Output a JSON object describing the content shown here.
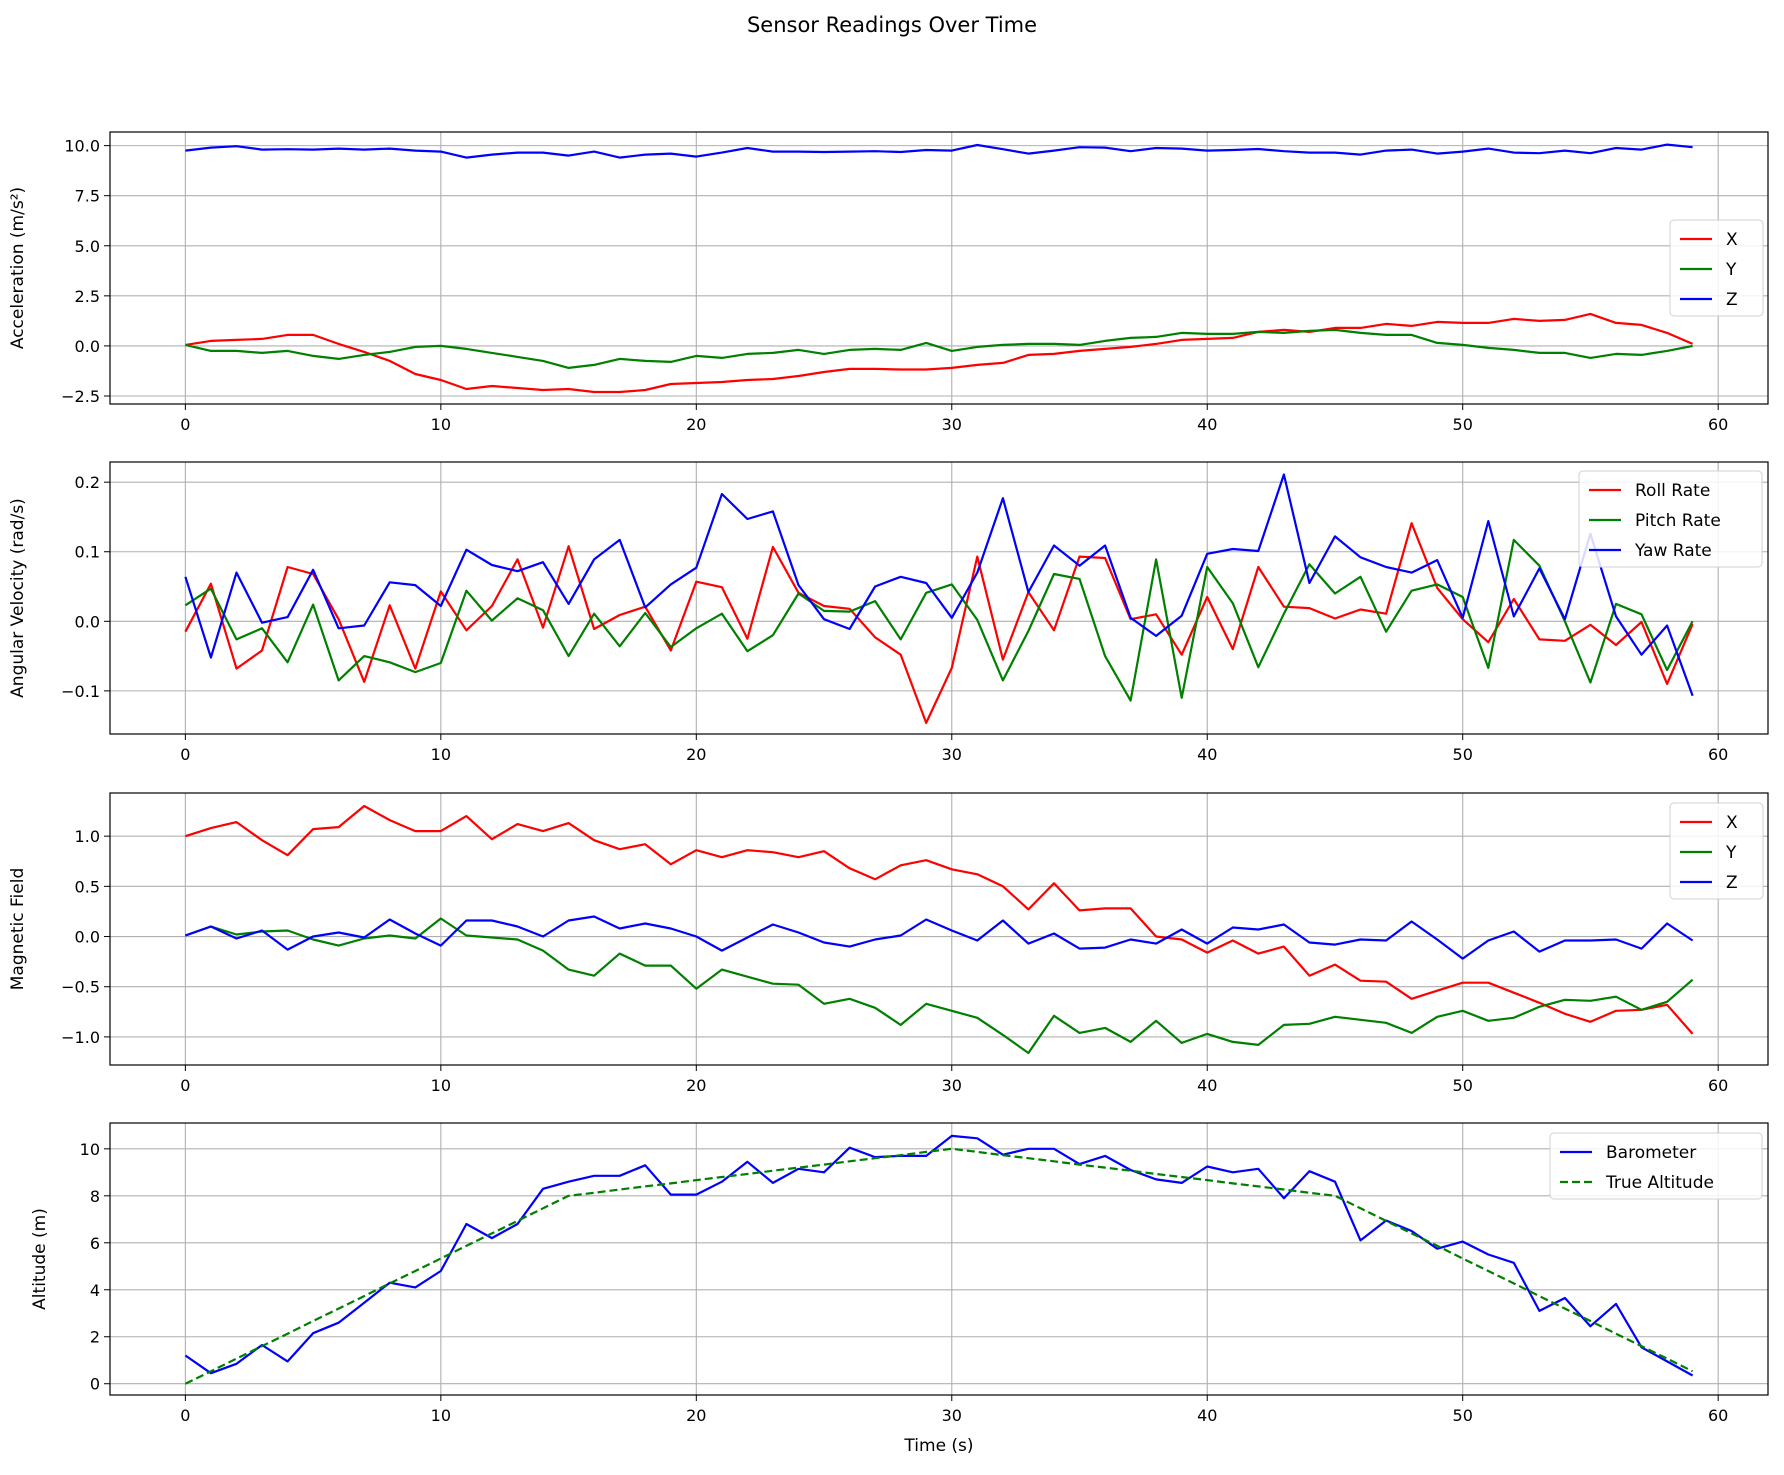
{
  "title": "Sensor Readings Over Time",
  "colors": {
    "red": "#ff0000",
    "green": "#008000",
    "blue": "#0000ff",
    "grid": "#b0b0b0"
  },
  "chart_data": [
    {
      "type": "line",
      "ylabel": "Acceleration (m/s²)",
      "xlabel": "",
      "xlim": [
        -2.95,
        61.95
      ],
      "ylim": [
        -2.9,
        10.68
      ],
      "xticks": [
        "0",
        "10",
        "20",
        "30",
        "40",
        "50",
        "60"
      ],
      "yticks": [
        "−2.5",
        "0.0",
        "2.5",
        "5.0",
        "7.5",
        "10.0"
      ],
      "ytick_values": [
        -2.5,
        0,
        2.5,
        5,
        7.5,
        10
      ],
      "grid": true,
      "legend": "center-right",
      "series": [
        {
          "name": "X",
          "color": "#ff0000",
          "values": [
            0.05,
            0.25,
            0.3,
            0.35,
            0.55,
            0.55,
            0.1,
            -0.3,
            -0.75,
            -1.4,
            -1.7,
            -2.15,
            -2.0,
            -2.1,
            -2.2,
            -2.15,
            -2.3,
            -2.3,
            -2.2,
            -1.9,
            -1.85,
            -1.8,
            -1.7,
            -1.65,
            -1.5,
            -1.3,
            -1.15,
            -1.15,
            -1.18,
            -1.18,
            -1.1,
            -0.95,
            -0.85,
            -0.45,
            -0.4,
            -0.25,
            -0.15,
            -0.05,
            0.1,
            0.3,
            0.35,
            0.4,
            0.7,
            0.8,
            0.7,
            0.9,
            0.9,
            1.1,
            1.0,
            1.2,
            1.15,
            1.15,
            1.35,
            1.25,
            1.3,
            1.6,
            1.15,
            1.05,
            0.65,
            0.1
          ]
        },
        {
          "name": "Y",
          "color": "#008000",
          "values": [
            0.05,
            -0.25,
            -0.25,
            -0.35,
            -0.25,
            -0.5,
            -0.65,
            -0.45,
            -0.3,
            -0.05,
            0.0,
            -0.15,
            -0.35,
            -0.55,
            -0.75,
            -1.1,
            -0.95,
            -0.65,
            -0.75,
            -0.8,
            -0.5,
            -0.6,
            -0.4,
            -0.35,
            -0.2,
            -0.4,
            -0.2,
            -0.15,
            -0.2,
            0.15,
            -0.25,
            -0.05,
            0.05,
            0.1,
            0.1,
            0.05,
            0.25,
            0.4,
            0.45,
            0.65,
            0.6,
            0.6,
            0.7,
            0.65,
            0.75,
            0.8,
            0.65,
            0.55,
            0.55,
            0.15,
            0.05,
            -0.1,
            -0.2,
            -0.35,
            -0.35,
            -0.6,
            -0.4,
            -0.45,
            -0.25,
            0.0
          ]
        },
        {
          "name": "Z",
          "color": "#0000ff",
          "values": [
            9.75,
            9.9,
            9.97,
            9.8,
            9.82,
            9.8,
            9.85,
            9.8,
            9.85,
            9.75,
            9.7,
            9.4,
            9.55,
            9.65,
            9.65,
            9.5,
            9.7,
            9.4,
            9.55,
            9.6,
            9.45,
            9.65,
            9.88,
            9.7,
            9.7,
            9.68,
            9.7,
            9.72,
            9.68,
            9.78,
            9.75,
            10.03,
            9.82,
            9.6,
            9.75,
            9.92,
            9.9,
            9.72,
            9.88,
            9.85,
            9.75,
            9.78,
            9.83,
            9.72,
            9.65,
            9.65,
            9.55,
            9.75,
            9.8,
            9.6,
            9.7,
            9.85,
            9.65,
            9.62,
            9.75,
            9.62,
            9.88,
            9.8,
            10.05,
            9.92
          ]
        }
      ]
    },
    {
      "type": "line",
      "ylabel": "Angular Velocity (rad/s)",
      "xlabel": "",
      "xlim": [
        -2.95,
        61.95
      ],
      "ylim": [
        -0.162,
        0.229
      ],
      "xticks": [
        "0",
        "10",
        "20",
        "30",
        "40",
        "50",
        "60"
      ],
      "yticks": [
        "−0.1",
        "0.0",
        "0.1",
        "0.2"
      ],
      "ytick_values": [
        -0.1,
        0,
        0.1,
        0.2
      ],
      "grid": true,
      "legend": "upper-right",
      "series": [
        {
          "name": "Roll Rate",
          "color": "#ff0000",
          "values": [
            -0.015,
            0.054,
            -0.068,
            -0.042,
            0.078,
            0.068,
            0.003,
            -0.087,
            0.023,
            -0.068,
            0.043,
            -0.013,
            0.022,
            0.089,
            -0.009,
            0.108,
            -0.011,
            0.009,
            0.021,
            -0.042,
            0.057,
            0.049,
            -0.025,
            0.107,
            0.041,
            0.022,
            0.018,
            -0.023,
            -0.048,
            -0.146,
            -0.067,
            0.093,
            -0.055,
            0.042,
            -0.013,
            0.093,
            0.091,
            0.003,
            0.01,
            -0.048,
            0.035,
            -0.04,
            0.078,
            0.021,
            0.019,
            0.004,
            0.017,
            0.011,
            0.141,
            0.048,
            0.003,
            -0.03,
            0.032,
            -0.026,
            -0.028,
            -0.005,
            -0.034,
            -0.001,
            -0.09,
            -0.004
          ]
        },
        {
          "name": "Pitch Rate",
          "color": "#008000",
          "values": [
            0.023,
            0.047,
            -0.026,
            -0.01,
            -0.059,
            0.024,
            -0.085,
            -0.05,
            -0.059,
            -0.073,
            -0.06,
            0.044,
            0.001,
            0.033,
            0.016,
            -0.05,
            0.011,
            -0.036,
            0.012,
            -0.037,
            -0.01,
            0.011,
            -0.043,
            -0.02,
            0.04,
            0.015,
            0.014,
            0.029,
            -0.026,
            0.041,
            0.053,
            0.002,
            -0.085,
            -0.014,
            0.068,
            0.061,
            -0.05,
            -0.114,
            0.089,
            -0.11,
            0.078,
            0.026,
            -0.066,
            0.011,
            0.082,
            0.04,
            0.064,
            -0.015,
            0.044,
            0.053,
            0.035,
            -0.067,
            0.117,
            0.08,
            0.0,
            -0.088,
            0.025,
            0.01,
            -0.07,
            0.0
          ]
        },
        {
          "name": "Yaw Rate",
          "color": "#0000ff",
          "values": [
            0.064,
            -0.052,
            0.07,
            -0.002,
            0.006,
            0.074,
            -0.01,
            -0.006,
            0.056,
            0.052,
            0.022,
            0.103,
            0.081,
            0.072,
            0.085,
            0.025,
            0.089,
            0.117,
            0.02,
            0.053,
            0.077,
            0.183,
            0.147,
            0.158,
            0.052,
            0.003,
            -0.011,
            0.05,
            0.064,
            0.055,
            0.005,
            0.07,
            0.177,
            0.042,
            0.109,
            0.08,
            0.109,
            0.005,
            -0.021,
            0.008,
            0.097,
            0.104,
            0.101,
            0.211,
            0.055,
            0.122,
            0.092,
            0.078,
            0.07,
            0.088,
            0.005,
            0.144,
            0.007,
            0.076,
            0.003,
            0.126,
            0.007,
            -0.048,
            -0.006,
            -0.107
          ]
        }
      ]
    },
    {
      "type": "line",
      "ylabel": "Magnetic Field",
      "xlabel": "",
      "xlim": [
        -2.95,
        61.95
      ],
      "ylim": [
        -1.28,
        1.43
      ],
      "xticks": [
        "0",
        "10",
        "20",
        "30",
        "40",
        "50",
        "60"
      ],
      "yticks": [
        "−1.0",
        "−0.5",
        "0.0",
        "0.5",
        "1.0"
      ],
      "ytick_values": [
        -1,
        -0.5,
        0,
        0.5,
        1
      ],
      "grid": true,
      "legend": "upper-right",
      "series": [
        {
          "name": "X",
          "color": "#ff0000",
          "values": [
            1.0,
            1.08,
            1.14,
            0.96,
            0.81,
            1.07,
            1.09,
            1.3,
            1.16,
            1.05,
            1.05,
            1.2,
            0.97,
            1.12,
            1.05,
            1.13,
            0.96,
            0.87,
            0.92,
            0.72,
            0.86,
            0.79,
            0.86,
            0.84,
            0.79,
            0.85,
            0.68,
            0.57,
            0.71,
            0.76,
            0.67,
            0.62,
            0.5,
            0.27,
            0.53,
            0.26,
            0.28,
            0.28,
            0.0,
            -0.03,
            -0.16,
            -0.04,
            -0.17,
            -0.1,
            -0.39,
            -0.28,
            -0.44,
            -0.45,
            -0.62,
            -0.54,
            -0.46,
            -0.46,
            -0.56,
            -0.66,
            -0.77,
            -0.85,
            -0.74,
            -0.73,
            -0.68,
            -0.97
          ]
        },
        {
          "name": "Y",
          "color": "#008000",
          "values": [
            0.01,
            0.1,
            0.02,
            0.05,
            0.06,
            -0.03,
            -0.09,
            -0.02,
            0.01,
            -0.02,
            0.18,
            0.01,
            -0.01,
            -0.03,
            -0.14,
            -0.33,
            -0.39,
            -0.17,
            -0.29,
            -0.29,
            -0.52,
            -0.33,
            -0.4,
            -0.47,
            -0.48,
            -0.67,
            -0.62,
            -0.71,
            -0.88,
            -0.67,
            -0.74,
            -0.81,
            -0.98,
            -1.16,
            -0.79,
            -0.96,
            -0.91,
            -1.05,
            -0.84,
            -1.06,
            -0.97,
            -1.05,
            -1.08,
            -0.88,
            -0.87,
            -0.8,
            -0.83,
            -0.86,
            -0.96,
            -0.8,
            -0.74,
            -0.84,
            -0.81,
            -0.7,
            -0.63,
            -0.64,
            -0.6,
            -0.73,
            -0.65,
            -0.43
          ]
        },
        {
          "name": "Z",
          "color": "#0000ff",
          "values": [
            0.01,
            0.1,
            -0.02,
            0.06,
            -0.13,
            0.0,
            0.04,
            -0.01,
            0.17,
            0.03,
            -0.09,
            0.16,
            0.16,
            0.1,
            0.0,
            0.16,
            0.2,
            0.08,
            0.13,
            0.08,
            0.0,
            -0.14,
            -0.01,
            0.12,
            0.04,
            -0.06,
            -0.1,
            -0.03,
            0.01,
            0.17,
            0.06,
            -0.04,
            0.16,
            -0.07,
            0.03,
            -0.12,
            -0.11,
            -0.03,
            -0.07,
            0.07,
            -0.07,
            0.09,
            0.07,
            0.12,
            -0.06,
            -0.08,
            -0.03,
            -0.04,
            0.15,
            -0.03,
            -0.22,
            -0.04,
            0.05,
            -0.15,
            -0.04,
            -0.04,
            -0.03,
            -0.12,
            0.13,
            -0.04
          ]
        }
      ]
    },
    {
      "type": "line",
      "ylabel": "Altitude (m)",
      "xlabel": "Time (s)",
      "xlim": [
        -2.95,
        61.95
      ],
      "ylim": [
        -0.48,
        11.1
      ],
      "xticks": [
        "0",
        "10",
        "20",
        "30",
        "40",
        "50",
        "60"
      ],
      "yticks": [
        "0",
        "2",
        "4",
        "6",
        "8",
        "10"
      ],
      "ytick_values": [
        0,
        2,
        4,
        6,
        8,
        10
      ],
      "grid": true,
      "legend": "upper-right",
      "series": [
        {
          "name": "Barometer",
          "color": "#0000ff",
          "dash": false,
          "values": [
            1.2,
            0.45,
            0.85,
            1.65,
            0.95,
            2.15,
            2.6,
            3.45,
            4.3,
            4.1,
            4.8,
            6.8,
            6.2,
            6.8,
            8.3,
            8.6,
            8.85,
            8.85,
            9.3,
            8.05,
            8.05,
            8.6,
            9.45,
            8.55,
            9.15,
            9.0,
            10.05,
            9.65,
            9.7,
            9.7,
            10.55,
            10.45,
            9.75,
            10.0,
            10.0,
            9.35,
            9.7,
            9.1,
            8.7,
            8.55,
            9.25,
            9.0,
            9.15,
            7.9,
            9.05,
            8.6,
            6.1,
            6.95,
            6.5,
            5.75,
            6.05,
            5.5,
            5.15,
            3.1,
            3.65,
            2.45,
            3.4,
            1.55,
            0.95,
            0.35
          ]
        },
        {
          "name": "True Altitude",
          "color": "#008000",
          "dash": true,
          "values": [
            0,
            0.53,
            1.07,
            1.6,
            2.13,
            2.67,
            3.2,
            3.73,
            4.27,
            4.8,
            5.33,
            5.87,
            6.4,
            6.93,
            7.47,
            8.0,
            8.13,
            8.27,
            8.4,
            8.53,
            8.67,
            8.8,
            8.93,
            9.07,
            9.2,
            9.33,
            9.47,
            9.6,
            9.73,
            9.87,
            10.0,
            9.87,
            9.73,
            9.6,
            9.47,
            9.33,
            9.2,
            9.07,
            8.93,
            8.8,
            8.67,
            8.53,
            8.4,
            8.27,
            8.13,
            8.0,
            7.47,
            6.93,
            6.4,
            5.87,
            5.33,
            4.8,
            4.27,
            3.73,
            3.2,
            2.67,
            2.13,
            1.6,
            1.07,
            0.53
          ]
        }
      ]
    }
  ]
}
